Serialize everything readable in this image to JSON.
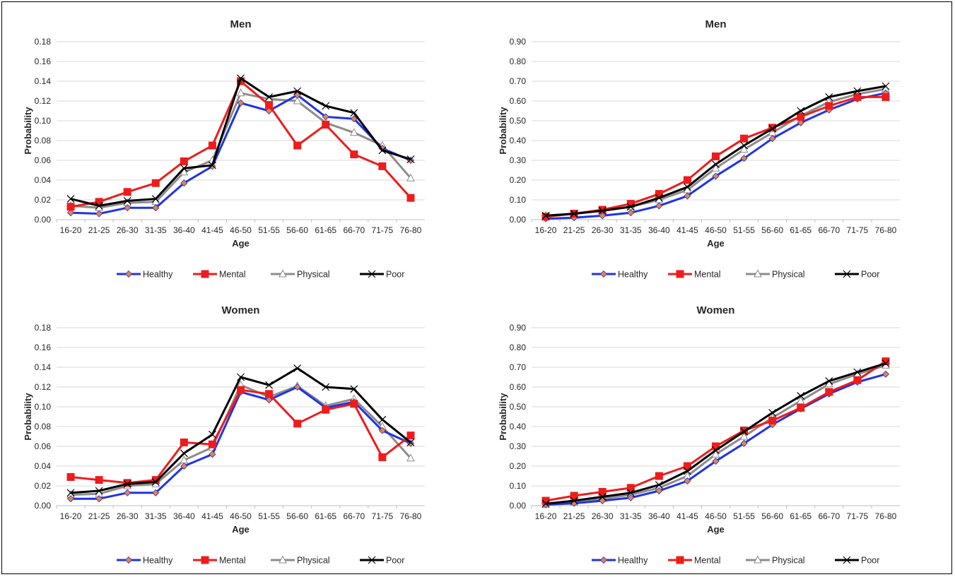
{
  "series_names": [
    "Healthy",
    "Mental",
    "Physical",
    "Poor"
  ],
  "colors": {
    "Healthy": "#1f33e6",
    "Mental": "#ee1c1c",
    "Physical": "#8c8c8c",
    "Poor": "#000000",
    "marker_healthy": "#e9843b",
    "grid": "#d9d9d9"
  },
  "chart_data": [
    {
      "type": "line",
      "title": "Men",
      "xlabel": "Age",
      "ylabel": "Probability",
      "ylim": [
        0,
        0.18
      ],
      "yticks": [
        "0.00",
        "0.02",
        "0.04",
        "0.06",
        "0.08",
        "0.10",
        "0.12",
        "0.14",
        "0.16",
        "0.18"
      ],
      "categories": [
        "16-20",
        "21-25",
        "26-30",
        "31-35",
        "36-40",
        "41-45",
        "46-50",
        "51-55",
        "56-60",
        "61-65",
        "66-70",
        "71-75",
        "76-80"
      ],
      "grid": true,
      "legend_position": "bottom",
      "series": [
        {
          "name": "Healthy",
          "values": [
            0.007,
            0.006,
            0.012,
            0.012,
            0.037,
            0.054,
            0.118,
            0.11,
            0.126,
            0.104,
            0.102,
            0.072,
            0.06
          ]
        },
        {
          "name": "Mental",
          "values": [
            0.013,
            0.018,
            0.028,
            0.037,
            0.059,
            0.075,
            0.14,
            0.116,
            0.075,
            0.096,
            0.066,
            0.054,
            0.022
          ]
        },
        {
          "name": "Physical",
          "values": [
            0.014,
            0.012,
            0.017,
            0.018,
            0.048,
            0.06,
            0.128,
            0.122,
            0.12,
            0.098,
            0.088,
            0.075,
            0.042
          ]
        },
        {
          "name": "Poor",
          "values": [
            0.021,
            0.014,
            0.019,
            0.021,
            0.052,
            0.055,
            0.143,
            0.124,
            0.13,
            0.115,
            0.108,
            0.07,
            0.061
          ]
        }
      ]
    },
    {
      "type": "line",
      "title": "Men",
      "xlabel": "Age",
      "ylabel": "Probability",
      "ylim": [
        0,
        0.9
      ],
      "yticks": [
        "0.00",
        "0.10",
        "0.20",
        "0.30",
        "0.40",
        "0.50",
        "0.60",
        "0.70",
        "0.80",
        "0.90"
      ],
      "categories": [
        "16-20",
        "21-25",
        "26-30",
        "31-35",
        "36-40",
        "41-45",
        "46-50",
        "51-55",
        "56-60",
        "61-65",
        "66-70",
        "71-75",
        "76-80"
      ],
      "grid": true,
      "legend_position": "bottom",
      "series": [
        {
          "name": "Healthy",
          "values": [
            0.005,
            0.01,
            0.02,
            0.035,
            0.07,
            0.12,
            0.22,
            0.31,
            0.41,
            0.49,
            0.555,
            0.61,
            0.64
          ]
        },
        {
          "name": "Mental",
          "values": [
            0.015,
            0.03,
            0.05,
            0.08,
            0.13,
            0.2,
            0.32,
            0.41,
            0.465,
            0.52,
            0.575,
            0.62,
            0.62
          ]
        },
        {
          "name": "Physical",
          "values": [
            0.02,
            0.03,
            0.045,
            0.065,
            0.1,
            0.15,
            0.26,
            0.355,
            0.44,
            0.525,
            0.595,
            0.635,
            0.66
          ]
        },
        {
          "name": "Poor",
          "values": [
            0.02,
            0.03,
            0.045,
            0.065,
            0.11,
            0.165,
            0.28,
            0.375,
            0.46,
            0.55,
            0.62,
            0.65,
            0.675
          ]
        }
      ]
    },
    {
      "type": "line",
      "title": "Women",
      "xlabel": "Age",
      "ylabel": "Probability",
      "ylim": [
        0,
        0.18
      ],
      "yticks": [
        "0.00",
        "0.02",
        "0.04",
        "0.06",
        "0.08",
        "0.10",
        "0.12",
        "0.14",
        "0.16",
        "0.18"
      ],
      "categories": [
        "16-20",
        "21-25",
        "26-30",
        "31-35",
        "36-40",
        "41-45",
        "46-50",
        "51-55",
        "56-60",
        "61-65",
        "66-70",
        "71-75",
        "76-80"
      ],
      "grid": true,
      "legend_position": "bottom",
      "series": [
        {
          "name": "Healthy",
          "values": [
            0.007,
            0.007,
            0.013,
            0.013,
            0.04,
            0.052,
            0.115,
            0.107,
            0.12,
            0.099,
            0.105,
            0.076,
            0.063
          ]
        },
        {
          "name": "Mental",
          "values": [
            0.029,
            0.026,
            0.023,
            0.026,
            0.064,
            0.062,
            0.117,
            0.113,
            0.083,
            0.097,
            0.103,
            0.049,
            0.071
          ]
        },
        {
          "name": "Physical",
          "values": [
            0.011,
            0.012,
            0.02,
            0.022,
            0.046,
            0.059,
            0.122,
            0.11,
            0.121,
            0.101,
            0.108,
            0.08,
            0.048
          ]
        },
        {
          "name": "Poor",
          "values": [
            0.013,
            0.015,
            0.022,
            0.024,
            0.053,
            0.072,
            0.13,
            0.122,
            0.139,
            0.12,
            0.118,
            0.087,
            0.064
          ]
        }
      ]
    },
    {
      "type": "line",
      "title": "Women",
      "xlabel": "Age",
      "ylabel": "Probability",
      "ylim": [
        0,
        0.9
      ],
      "yticks": [
        "0.00",
        "0.10",
        "0.20",
        "0.30",
        "0.40",
        "0.50",
        "0.60",
        "0.70",
        "0.80",
        "0.90"
      ],
      "categories": [
        "16-20",
        "21-25",
        "26-30",
        "31-35",
        "36-40",
        "41-45",
        "46-50",
        "51-55",
        "56-60",
        "61-65",
        "66-70",
        "71-75",
        "76-80"
      ],
      "grid": true,
      "legend_position": "bottom",
      "series": [
        {
          "name": "Healthy",
          "values": [
            0.005,
            0.012,
            0.025,
            0.04,
            0.075,
            0.125,
            0.225,
            0.315,
            0.41,
            0.49,
            0.565,
            0.625,
            0.665
          ]
        },
        {
          "name": "Mental",
          "values": [
            0.025,
            0.05,
            0.07,
            0.09,
            0.15,
            0.2,
            0.3,
            0.38,
            0.43,
            0.495,
            0.575,
            0.635,
            0.73
          ]
        },
        {
          "name": "Physical",
          "values": [
            0.005,
            0.018,
            0.035,
            0.055,
            0.09,
            0.15,
            0.26,
            0.35,
            0.445,
            0.53,
            0.615,
            0.665,
            0.71
          ]
        },
        {
          "name": "Poor",
          "values": [
            0.01,
            0.025,
            0.045,
            0.065,
            0.105,
            0.175,
            0.28,
            0.375,
            0.47,
            0.555,
            0.63,
            0.675,
            0.72
          ]
        }
      ]
    }
  ]
}
